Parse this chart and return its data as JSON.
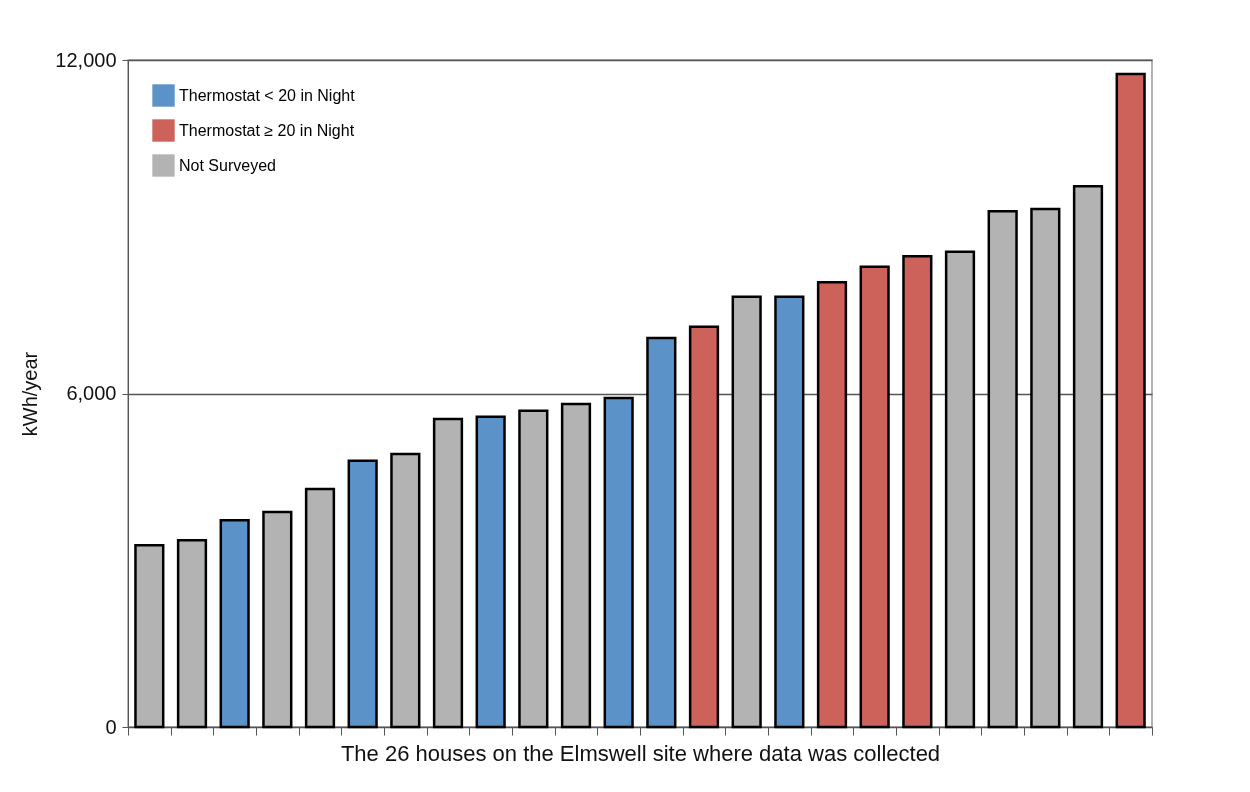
{
  "chart_data": {
    "type": "bar",
    "xlabel": "The 26 houses on the Elmswell site where data was collected",
    "ylabel": "kWh/year",
    "categories": [
      null,
      null,
      null,
      null,
      null,
      null,
      null,
      null,
      null,
      null,
      null,
      null,
      null,
      null,
      null,
      null,
      null,
      null,
      null,
      null,
      null,
      null,
      null,
      null
    ],
    "series": [
      {
        "name": "Thermostat < 20 in Night",
        "color": "#5b93c9",
        "values": [
          null,
          null,
          3720,
          null,
          null,
          4790,
          null,
          null,
          5580,
          null,
          null,
          5920,
          7000,
          null,
          null,
          7740,
          null,
          null,
          null,
          null,
          null,
          null,
          null,
          null
        ]
      },
      {
        "name": "Thermostat ≥ 20 in Night",
        "color": "#cd625b",
        "values": [
          null,
          null,
          null,
          null,
          null,
          null,
          null,
          null,
          null,
          null,
          null,
          null,
          null,
          7200,
          null,
          null,
          8000,
          8280,
          8470,
          null,
          null,
          null,
          null,
          11750
        ]
      },
      {
        "name": "Not Surveyed",
        "color": "#b3b3b3",
        "values": [
          3270,
          3360,
          null,
          3870,
          4280,
          null,
          4910,
          5540,
          null,
          5690,
          5810,
          null,
          null,
          null,
          7740,
          null,
          null,
          null,
          null,
          8550,
          9280,
          9320,
          9730,
          null
        ]
      }
    ],
    "ylim": [
      0,
      12000
    ],
    "yticks": [
      0,
      {
        "value": 6000,
        "label": "6,000"
      },
      {
        "value": 12000,
        "label": "12,000"
      }
    ],
    "grid": "y",
    "legend": "top left",
    "tick_labels": "y"
  }
}
